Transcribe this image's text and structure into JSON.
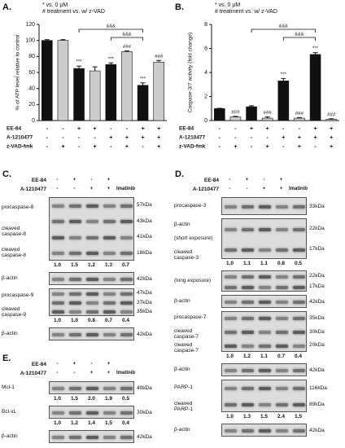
{
  "chart_data": [
    {
      "type": "bar",
      "panel_label": "A.",
      "legend_lines": [
        "* vs. 0 μM",
        "# treatment vs. w/ z-VAD"
      ],
      "ylabel": "% of ATP level relative to control",
      "values": [
        100,
        100,
        65,
        62,
        70,
        86,
        44,
        73
      ],
      "errors": [
        1,
        1,
        3,
        5,
        2,
        1,
        3,
        2
      ],
      "colors": [
        "#111111",
        "#cccccc",
        "#111111",
        "#cccccc",
        "#111111",
        "#cccccc",
        "#111111",
        "#cccccc"
      ],
      "bar_labels": [
        null,
        null,
        "***",
        null,
        "***",
        "###",
        "***",
        "###"
      ],
      "brackets": [
        {
          "from": 2,
          "to": 6,
          "text": "&&&"
        },
        {
          "from": 4,
          "to": 6,
          "text": "&&&"
        }
      ],
      "ylim": [
        0,
        120
      ],
      "yticks": [
        0,
        20,
        40,
        60,
        80,
        100,
        120
      ],
      "treatments": [
        {
          "label": "EE-84",
          "signs": [
            "-",
            "-",
            "+",
            "+",
            "-",
            "-",
            "+",
            "+"
          ]
        },
        {
          "label": "A-1210477",
          "signs": [
            "-",
            "-",
            "-",
            "-",
            "+",
            "+",
            "+",
            "+"
          ]
        },
        {
          "label": "z-VAD-fmk",
          "signs": [
            "-",
            "+",
            "-",
            "+",
            "-",
            "+",
            "-",
            "+"
          ]
        }
      ]
    },
    {
      "type": "bar",
      "panel_label": "B.",
      "legend_lines": [
        "* vs. 0 μM",
        "# treatment vs. w/ z-VAD"
      ],
      "ylabel": "Caspase-3/7 activity (fold change)",
      "values": [
        1.0,
        0.3,
        1.15,
        0.2,
        3.3,
        0.2,
        5.5,
        0.1
      ],
      "errors": [
        0.02,
        0.05,
        0.08,
        0.1,
        0.2,
        0.05,
        0.15,
        0.05
      ],
      "colors": [
        "#111111",
        "#cccccc",
        "#111111",
        "#cccccc",
        "#111111",
        "#cccccc",
        "#111111",
        "#cccccc"
      ],
      "bar_labels": [
        null,
        "###",
        null,
        "###",
        "***",
        "###",
        "***",
        "###"
      ],
      "brackets": [
        {
          "from": 2,
          "to": 6,
          "text": "&&&"
        },
        {
          "from": 4,
          "to": 6,
          "text": "&&&"
        }
      ],
      "ylim": [
        0,
        8
      ],
      "yticks": [
        0,
        2,
        4,
        6,
        8
      ],
      "treatments": [
        {
          "label": "EE-84",
          "signs": [
            "-",
            "-",
            "+",
            "+",
            "-",
            "-",
            "+",
            "+"
          ]
        },
        {
          "label": "A-1210477",
          "signs": [
            "-",
            "-",
            "-",
            "-",
            "+",
            "+",
            "+",
            "+"
          ]
        },
        {
          "label": "z-VAD-fmk",
          "signs": [
            "-",
            "+",
            "-",
            "+",
            "-",
            "+",
            "-",
            "+"
          ]
        }
      ]
    }
  ],
  "blots": [
    {
      "panel_label": "C.",
      "treatments": [
        {
          "label": "EE-84",
          "signs": [
            "-",
            "+",
            "-",
            "+"
          ]
        },
        {
          "label": "A-1210477",
          "signs": [
            "-",
            "-",
            "+",
            "+",
            "Imatinib"
          ]
        }
      ],
      "strips": [
        {
          "labels": [
            "procaspase-8",
            "cleaved\ncaspase-8",
            "cleaved\ncaspase-8"
          ],
          "markers": [
            "57kDa",
            "43kDa",
            "41kDa",
            "18kDa"
          ],
          "quant": [
            "1.0",
            "1.5",
            "1.2",
            "1.3",
            "0.7"
          ]
        },
        {
          "labels": [
            "β-actin"
          ],
          "markers": [
            "42kDa"
          ]
        },
        {
          "labels": [
            "procaspase-9",
            "cleaved\ncaspase-9"
          ],
          "markers": [
            "47kDa",
            "37kDa",
            "35kDa"
          ],
          "quant": [
            "1.0",
            "1.0",
            "0.8",
            "0.7",
            "0.4"
          ]
        },
        {
          "labels": [
            "β-actin"
          ],
          "markers": [
            "42kDa"
          ]
        }
      ]
    },
    {
      "panel_label": "D.",
      "treatments": [
        {
          "label": "EE-84",
          "signs": [
            "-",
            "+",
            "-",
            "+"
          ]
        },
        {
          "label": "A-1210477",
          "signs": [
            "-",
            "-",
            "+",
            "+",
            "Imatinib"
          ]
        }
      ],
      "strips": [
        {
          "labels": [
            "procaspase-3"
          ],
          "markers": [
            "33kDa"
          ]
        },
        {
          "labels": [
            "β-actin",
            "(short exposure)",
            "cleaved\ncaspase-3"
          ],
          "markers": [
            "22kDa",
            "17kDa"
          ],
          "quant": [
            "1.0",
            "1.1",
            "1.1",
            "0.8",
            "0.5"
          ]
        },
        {
          "labels": [
            "(long exposure)"
          ],
          "markers": [
            "22kDa",
            "17kDa"
          ]
        },
        {
          "labels": [
            "β-actin"
          ],
          "markers": [
            "42kDa"
          ]
        },
        {
          "labels": [
            "procaspase-7",
            "cleaved\ncaspase-7",
            "cleaved\ncaspase-7"
          ],
          "markers": [
            "35kDa",
            "30kDa",
            "20kDa"
          ],
          "quant": [
            "1.0",
            "1.2",
            "1.1",
            "0.7",
            "0.4"
          ]
        },
        {
          "labels": [
            "β-actin"
          ],
          "markers": [
            "42kDa"
          ]
        },
        {
          "labels": [
            "PARP-1",
            "cleaved\nPARP-1"
          ],
          "markers": [
            "116kDa",
            "89kDa"
          ],
          "quant": [
            "1.0",
            "1.3",
            "1.5",
            "2.4",
            "1.5"
          ]
        },
        {
          "labels": [
            "β-actin"
          ],
          "markers": [
            "42kDa"
          ]
        }
      ]
    },
    {
      "panel_label": "E.",
      "treatments": [
        {
          "label": "EE-84",
          "signs": [
            "-",
            "+",
            "-",
            "+"
          ]
        },
        {
          "label": "A-1210477",
          "signs": [
            "-",
            "-",
            "+",
            "+",
            "Imatinib"
          ]
        }
      ],
      "strips": [
        {
          "labels": [
            "Mcl-1"
          ],
          "markers": [
            "40kDa"
          ],
          "quant": [
            "1.0",
            "1.5",
            "2.0",
            "1.9",
            "0.5"
          ]
        },
        {
          "labels": [
            "Bcl-xL"
          ],
          "markers": [
            "30kDa"
          ],
          "quant": [
            "1.0",
            "1.2",
            "1.4",
            "1.5",
            "0.4"
          ]
        },
        {
          "labels": [
            "β-actin"
          ],
          "markers": [
            "42kDa"
          ]
        }
      ]
    }
  ]
}
